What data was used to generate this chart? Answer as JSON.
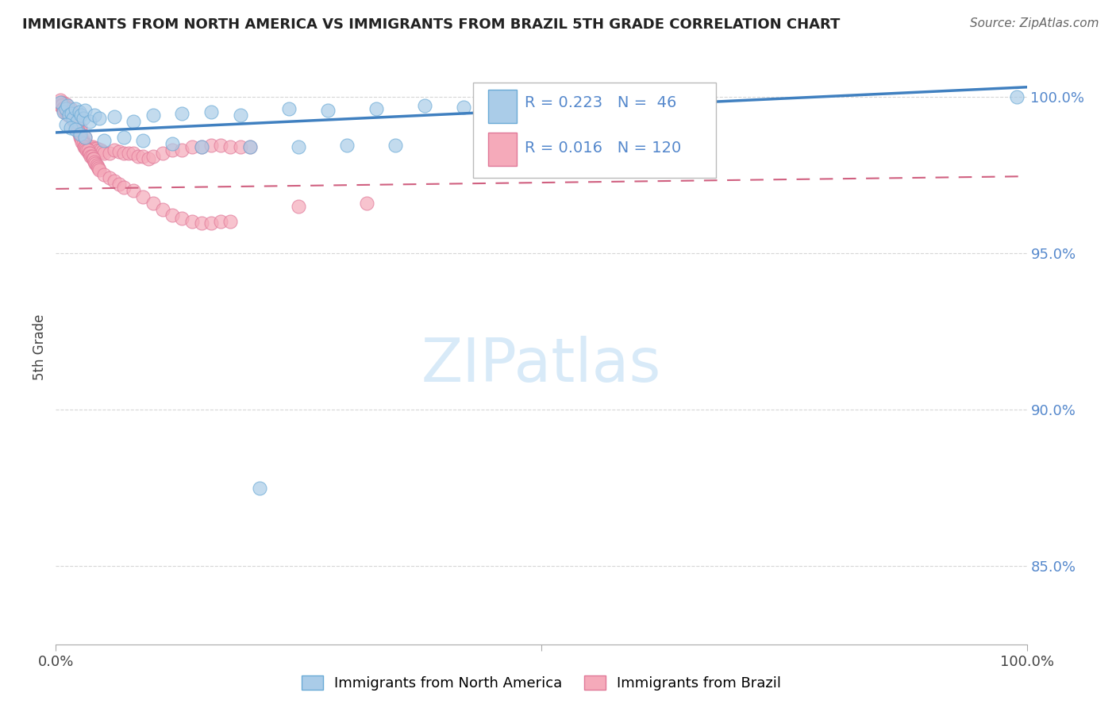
{
  "title": "IMMIGRANTS FROM NORTH AMERICA VS IMMIGRANTS FROM BRAZIL 5TH GRADE CORRELATION CHART",
  "source": "Source: ZipAtlas.com",
  "ylabel": "5th Grade",
  "ylim": [
    0.825,
    1.015
  ],
  "xlim": [
    0.0,
    1.0
  ],
  "ytick_values": [
    0.85,
    0.9,
    0.95,
    1.0
  ],
  "ytick_labels": [
    "85.0%",
    "90.0%",
    "95.0%",
    "100.0%"
  ],
  "legend1_label": "R = 0.223   N =  46",
  "legend2_label": "R = 0.016   N = 120",
  "na_color_face": "#aacce8",
  "na_color_edge": "#6aaad6",
  "br_color_face": "#f5aaba",
  "br_color_edge": "#e07898",
  "line_na_color": "#4080c0",
  "line_br_color": "#d06080",
  "ytick_color": "#5588cc",
  "grid_color": "#cccccc",
  "watermark_color": "#d8eaf8",
  "na_x": [
    0.005,
    0.008,
    0.01,
    0.012,
    0.014,
    0.016,
    0.018,
    0.02,
    0.022,
    0.024,
    0.026,
    0.028,
    0.03,
    0.035,
    0.04,
    0.045,
    0.06,
    0.08,
    0.1,
    0.13,
    0.16,
    0.19,
    0.24,
    0.28,
    0.33,
    0.38,
    0.42,
    0.47,
    0.51,
    0.56,
    0.01,
    0.015,
    0.02,
    0.025,
    0.03,
    0.05,
    0.07,
    0.09,
    0.12,
    0.15,
    0.2,
    0.25,
    0.3,
    0.35,
    0.99,
    0.21
  ],
  "na_y": [
    0.998,
    0.995,
    0.996,
    0.997,
    0.994,
    0.9945,
    0.993,
    0.996,
    0.992,
    0.995,
    0.994,
    0.993,
    0.9955,
    0.992,
    0.994,
    0.993,
    0.9935,
    0.992,
    0.994,
    0.9945,
    0.995,
    0.994,
    0.996,
    0.9955,
    0.996,
    0.997,
    0.9965,
    0.9975,
    0.997,
    0.998,
    0.991,
    0.99,
    0.9895,
    0.988,
    0.987,
    0.986,
    0.987,
    0.986,
    0.985,
    0.984,
    0.984,
    0.984,
    0.9845,
    0.9845,
    1.0,
    0.875
  ],
  "br_x": [
    0.005,
    0.005,
    0.006,
    0.007,
    0.008,
    0.009,
    0.01,
    0.01,
    0.011,
    0.012,
    0.013,
    0.014,
    0.015,
    0.015,
    0.016,
    0.017,
    0.018,
    0.019,
    0.02,
    0.02,
    0.021,
    0.022,
    0.023,
    0.024,
    0.025,
    0.025,
    0.026,
    0.027,
    0.028,
    0.029,
    0.03,
    0.03,
    0.032,
    0.034,
    0.036,
    0.038,
    0.04,
    0.042,
    0.044,
    0.046,
    0.048,
    0.05,
    0.055,
    0.06,
    0.065,
    0.07,
    0.075,
    0.08,
    0.085,
    0.09,
    0.095,
    0.1,
    0.11,
    0.12,
    0.13,
    0.14,
    0.15,
    0.16,
    0.17,
    0.18,
    0.19,
    0.2,
    0.006,
    0.007,
    0.008,
    0.009,
    0.01,
    0.011,
    0.012,
    0.013,
    0.014,
    0.015,
    0.016,
    0.017,
    0.018,
    0.019,
    0.02,
    0.021,
    0.022,
    0.023,
    0.024,
    0.025,
    0.026,
    0.027,
    0.028,
    0.029,
    0.03,
    0.031,
    0.032,
    0.033,
    0.034,
    0.035,
    0.036,
    0.037,
    0.038,
    0.039,
    0.04,
    0.041,
    0.042,
    0.043,
    0.044,
    0.045,
    0.05,
    0.055,
    0.06,
    0.065,
    0.07,
    0.08,
    0.09,
    0.1,
    0.11,
    0.12,
    0.13,
    0.14,
    0.15,
    0.16,
    0.17,
    0.18,
    0.25,
    0.32
  ],
  "br_y": [
    0.999,
    0.997,
    0.998,
    0.9975,
    0.9965,
    0.996,
    0.9975,
    0.9955,
    0.9965,
    0.996,
    0.995,
    0.994,
    0.996,
    0.9945,
    0.9935,
    0.993,
    0.9925,
    0.992,
    0.993,
    0.9915,
    0.991,
    0.9905,
    0.99,
    0.9895,
    0.99,
    0.988,
    0.987,
    0.9865,
    0.986,
    0.9855,
    0.987,
    0.985,
    0.984,
    0.984,
    0.984,
    0.984,
    0.9835,
    0.9835,
    0.983,
    0.983,
    0.9825,
    0.982,
    0.982,
    0.983,
    0.9825,
    0.982,
    0.982,
    0.982,
    0.981,
    0.981,
    0.98,
    0.981,
    0.982,
    0.983,
    0.983,
    0.984,
    0.984,
    0.9845,
    0.9845,
    0.984,
    0.984,
    0.9838,
    0.997,
    0.996,
    0.996,
    0.995,
    0.996,
    0.9945,
    0.995,
    0.994,
    0.9945,
    0.994,
    0.9935,
    0.994,
    0.9925,
    0.993,
    0.992,
    0.991,
    0.99,
    0.989,
    0.988,
    0.987,
    0.9865,
    0.9855,
    0.985,
    0.984,
    0.984,
    0.9835,
    0.983,
    0.983,
    0.982,
    0.982,
    0.981,
    0.981,
    0.98,
    0.98,
    0.979,
    0.9785,
    0.978,
    0.9775,
    0.977,
    0.9765,
    0.975,
    0.974,
    0.973,
    0.972,
    0.971,
    0.97,
    0.968,
    0.966,
    0.964,
    0.962,
    0.961,
    0.96,
    0.9595,
    0.9595,
    0.96,
    0.96,
    0.965,
    0.966
  ]
}
